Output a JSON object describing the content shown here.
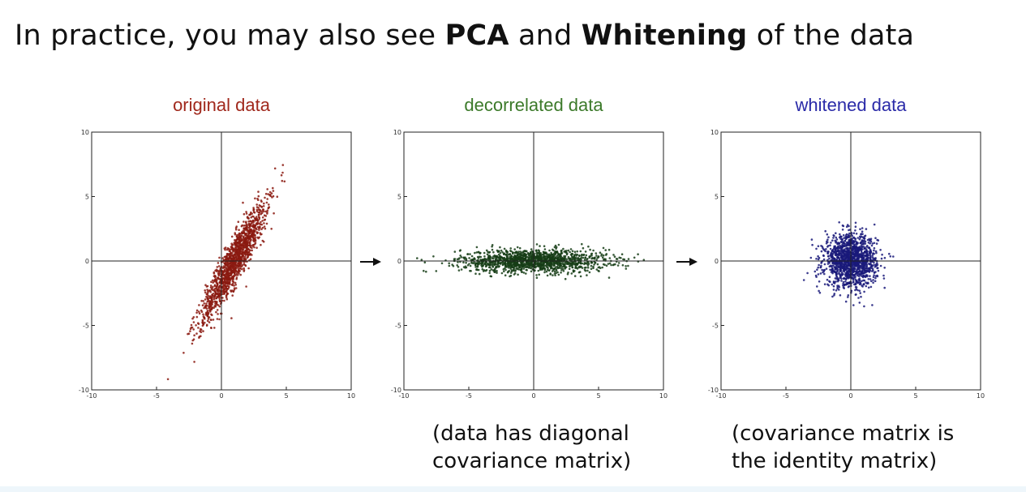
{
  "slide": {
    "title_parts": [
      "In practice, you may also see ",
      "PCA",
      " and ",
      "Whitening",
      " of the data"
    ],
    "captions": {
      "decorrelated": [
        "(data has diagonal",
        "covariance matrix)"
      ],
      "whitened": [
        "(covariance matrix is",
        "the identity matrix)"
      ]
    }
  },
  "chart_data": [
    {
      "type": "scatter",
      "title": "original data",
      "title_color": "#a0281c",
      "point_color": "#8b1a10",
      "xlim": [
        -10,
        10
      ],
      "ylim": [
        -10,
        10
      ],
      "xticks": [
        -10,
        -5,
        0,
        5,
        10
      ],
      "yticks": [
        -10,
        -5,
        0,
        5,
        10
      ],
      "grid": false,
      "distribution": {
        "mean": [
          1.0,
          0.0
        ],
        "major_sd": 2.6,
        "minor_sd": 0.45,
        "angle_deg": 62,
        "points": 1400
      }
    },
    {
      "type": "scatter",
      "title": "decorrelated data",
      "title_color": "#3c7a2a",
      "point_color": "#163d16",
      "xlim": [
        -10,
        10
      ],
      "ylim": [
        -10,
        10
      ],
      "xticks": [
        -10,
        -5,
        0,
        5,
        10
      ],
      "yticks": [
        -10,
        -5,
        0,
        5,
        10
      ],
      "grid": false,
      "distribution": {
        "mean": [
          0.0,
          0.0
        ],
        "major_sd": 2.8,
        "minor_sd": 0.45,
        "angle_deg": 0,
        "points": 1400
      }
    },
    {
      "type": "scatter",
      "title": "whitened data",
      "title_color": "#2a2aa8",
      "point_color": "#1a1a7a",
      "xlim": [
        -10,
        10
      ],
      "ylim": [
        -10,
        10
      ],
      "xticks": [
        -10,
        -5,
        0,
        5,
        10
      ],
      "yticks": [
        -10,
        -5,
        0,
        5,
        10
      ],
      "grid": false,
      "distribution": {
        "mean": [
          0.0,
          0.0
        ],
        "major_sd": 1.0,
        "minor_sd": 1.0,
        "angle_deg": 0,
        "points": 1400
      }
    }
  ]
}
